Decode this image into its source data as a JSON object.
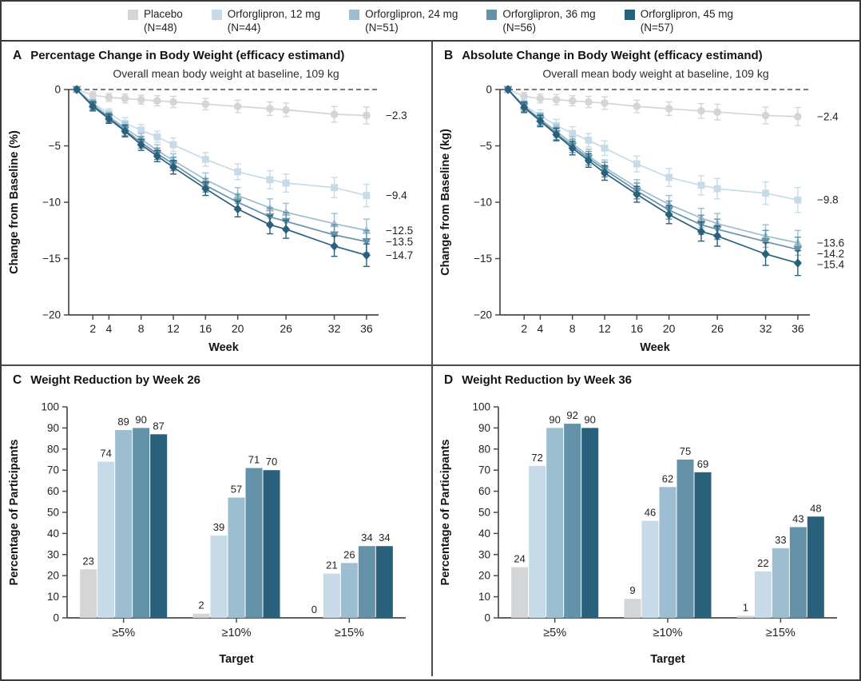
{
  "legend": {
    "items": [
      {
        "label": "Placebo",
        "n": "(N=48)",
        "color": "#d4d5d7"
      },
      {
        "label": "Orforglipron, 12 mg",
        "n": "(N=44)",
        "color": "#c6dbe7"
      },
      {
        "label": "Orforglipron, 24 mg",
        "n": "(N=51)",
        "color": "#9cbed0"
      },
      {
        "label": "Orforglipron, 36 mg",
        "n": "(N=56)",
        "color": "#6492a8"
      },
      {
        "label": "Orforglipron, 45 mg",
        "n": "(N=57)",
        "color": "#29607c"
      }
    ]
  },
  "chart_data": [
    {
      "id": "A",
      "type": "line",
      "panel_letter": "A",
      "title": "Percentage Change in Body Weight (efficacy estimand)",
      "subtitle": "Overall mean body weight at baseline, 109 kg",
      "xlabel": "Week",
      "ylabel": "Change from Baseline (%)",
      "ylim": [
        -20,
        0
      ],
      "yticks": [
        0,
        -5,
        -10,
        -15,
        -20
      ],
      "x": [
        0,
        2,
        4,
        6,
        8,
        10,
        12,
        16,
        20,
        24,
        26,
        32,
        36
      ],
      "xticks": [
        2,
        4,
        8,
        12,
        16,
        20,
        26,
        32,
        36
      ],
      "zero_reference_line": true,
      "err_placebo": [
        0,
        0.3,
        0.35,
        0.4,
        0.4,
        0.45,
        0.5,
        0.5,
        0.55,
        0.6,
        0.6,
        0.7,
        0.75
      ],
      "err_treatment": [
        0,
        0.4,
        0.4,
        0.5,
        0.5,
        0.5,
        0.6,
        0.6,
        0.7,
        0.8,
        0.8,
        0.9,
        1.0
      ],
      "series": [
        {
          "name": "Placebo",
          "marker": "circle",
          "color": "#d4d5d7",
          "end_label": "−2.3",
          "values": [
            0,
            -0.5,
            -0.7,
            -0.8,
            -0.9,
            -1.0,
            -1.1,
            -1.3,
            -1.5,
            -1.7,
            -1.8,
            -2.2,
            -2.3
          ]
        },
        {
          "name": "Orforglipron, 12 mg",
          "marker": "square",
          "color": "#c6dbe7",
          "end_label": "−9.4",
          "values": [
            0,
            -1.2,
            -2.1,
            -3.0,
            -3.6,
            -4.2,
            -4.9,
            -6.2,
            -7.3,
            -8.0,
            -8.3,
            -8.7,
            -9.4
          ]
        },
        {
          "name": "Orforglipron, 24 mg",
          "marker": "triangle-up",
          "color": "#9cbed0",
          "end_label": "−12.5",
          "values": [
            0,
            -1.3,
            -2.4,
            -3.4,
            -4.4,
            -5.4,
            -6.3,
            -8.0,
            -9.4,
            -10.5,
            -10.9,
            -11.9,
            -12.5
          ]
        },
        {
          "name": "Orforglipron, 36 mg",
          "marker": "triangle-down",
          "color": "#6492a8",
          "end_label": "−13.5",
          "values": [
            0,
            -1.4,
            -2.5,
            -3.6,
            -4.7,
            -5.7,
            -6.6,
            -8.5,
            -10.0,
            -11.3,
            -11.7,
            -12.9,
            -13.5
          ]
        },
        {
          "name": "Orforglipron, 45 mg",
          "marker": "diamond",
          "color": "#29607c",
          "end_label": "−14.7",
          "values": [
            0,
            -1.5,
            -2.6,
            -3.7,
            -4.9,
            -5.9,
            -6.9,
            -8.8,
            -10.6,
            -12.0,
            -12.4,
            -13.9,
            -14.7
          ]
        }
      ]
    },
    {
      "id": "B",
      "type": "line",
      "panel_letter": "B",
      "title": "Absolute Change in Body Weight (efficacy estimand)",
      "subtitle": "Overall mean body weight at baseline, 109 kg",
      "xlabel": "Week",
      "ylabel": "Change from Baseline (kg)",
      "ylim": [
        -20,
        0
      ],
      "yticks": [
        0,
        -5,
        -10,
        -15,
        -20
      ],
      "x": [
        0,
        2,
        4,
        6,
        8,
        10,
        12,
        16,
        20,
        24,
        26,
        32,
        36
      ],
      "xticks": [
        2,
        4,
        8,
        12,
        16,
        20,
        26,
        32,
        36
      ],
      "zero_reference_line": true,
      "err_placebo": [
        0,
        0.35,
        0.4,
        0.45,
        0.45,
        0.5,
        0.55,
        0.55,
        0.6,
        0.65,
        0.7,
        0.75,
        0.8
      ],
      "err_treatment": [
        0,
        0.45,
        0.5,
        0.55,
        0.6,
        0.6,
        0.65,
        0.7,
        0.8,
        0.85,
        0.9,
        1.0,
        1.1
      ],
      "series": [
        {
          "name": "Placebo",
          "marker": "circle",
          "color": "#d4d5d7",
          "end_label": "−2.4",
          "values": [
            0,
            -0.6,
            -0.8,
            -0.9,
            -1.0,
            -1.1,
            -1.2,
            -1.5,
            -1.7,
            -1.9,
            -2.0,
            -2.3,
            -2.4
          ]
        },
        {
          "name": "Orforglipron, 12 mg",
          "marker": "square",
          "color": "#c6dbe7",
          "end_label": "−9.8",
          "values": [
            0,
            -1.4,
            -2.3,
            -3.2,
            -3.9,
            -4.5,
            -5.2,
            -6.6,
            -7.8,
            -8.5,
            -8.8,
            -9.2,
            -9.8
          ]
        },
        {
          "name": "Orforglipron, 24 mg",
          "marker": "triangle-up",
          "color": "#9cbed0",
          "end_label": "−13.6",
          "values": [
            0,
            -1.5,
            -2.6,
            -3.7,
            -4.8,
            -5.9,
            -6.9,
            -8.7,
            -10.2,
            -11.4,
            -11.9,
            -13.0,
            -13.6
          ]
        },
        {
          "name": "Orforglipron, 36 mg",
          "marker": "triangle-down",
          "color": "#6492a8",
          "end_label": "−14.2",
          "values": [
            0,
            -1.5,
            -2.7,
            -3.9,
            -5.0,
            -6.1,
            -7.1,
            -9.0,
            -10.7,
            -12.0,
            -12.4,
            -13.5,
            -14.2
          ]
        },
        {
          "name": "Orforglipron, 45 mg",
          "marker": "diamond",
          "color": "#29607c",
          "end_label": "−15.4",
          "values": [
            0,
            -1.6,
            -2.8,
            -4.0,
            -5.2,
            -6.3,
            -7.4,
            -9.3,
            -11.1,
            -12.6,
            -13.0,
            -14.6,
            -15.4
          ]
        }
      ]
    },
    {
      "id": "C",
      "type": "bar",
      "panel_letter": "C",
      "title": "Weight Reduction by Week 26",
      "xlabel": "Target",
      "ylabel": "Percentage of Participants",
      "ylim": [
        0,
        100
      ],
      "ytick_step": 10,
      "categories": [
        "≥5%",
        "≥10%",
        "≥15%"
      ],
      "series": [
        {
          "name": "Placebo",
          "color": "#d4d5d7",
          "values": [
            23,
            2,
            0
          ]
        },
        {
          "name": "Orforglipron, 12 mg",
          "color": "#c6dbe7",
          "values": [
            74,
            39,
            21
          ]
        },
        {
          "name": "Orforglipron, 24 mg",
          "color": "#9cbed0",
          "values": [
            89,
            57,
            26
          ]
        },
        {
          "name": "Orforglipron, 36 mg",
          "color": "#6492a8",
          "values": [
            90,
            71,
            34
          ]
        },
        {
          "name": "Orforglipron, 45 mg",
          "color": "#29607c",
          "values": [
            87,
            70,
            34
          ]
        }
      ]
    },
    {
      "id": "D",
      "type": "bar",
      "panel_letter": "D",
      "title": "Weight Reduction by Week 36",
      "xlabel": "Target",
      "ylabel": "Percentage of Participants",
      "ylim": [
        0,
        100
      ],
      "ytick_step": 10,
      "categories": [
        "≥5%",
        "≥10%",
        "≥15%"
      ],
      "series": [
        {
          "name": "Placebo",
          "color": "#d4d5d7",
          "values": [
            24,
            9,
            1
          ]
        },
        {
          "name": "Orforglipron, 12 mg",
          "color": "#c6dbe7",
          "values": [
            72,
            46,
            22
          ]
        },
        {
          "name": "Orforglipron, 24 mg",
          "color": "#9cbed0",
          "values": [
            90,
            62,
            33
          ]
        },
        {
          "name": "Orforglipron, 36 mg",
          "color": "#6492a8",
          "values": [
            92,
            75,
            43
          ]
        },
        {
          "name": "Orforglipron, 45 mg",
          "color": "#29607c",
          "values": [
            90,
            69,
            48
          ]
        }
      ]
    }
  ]
}
